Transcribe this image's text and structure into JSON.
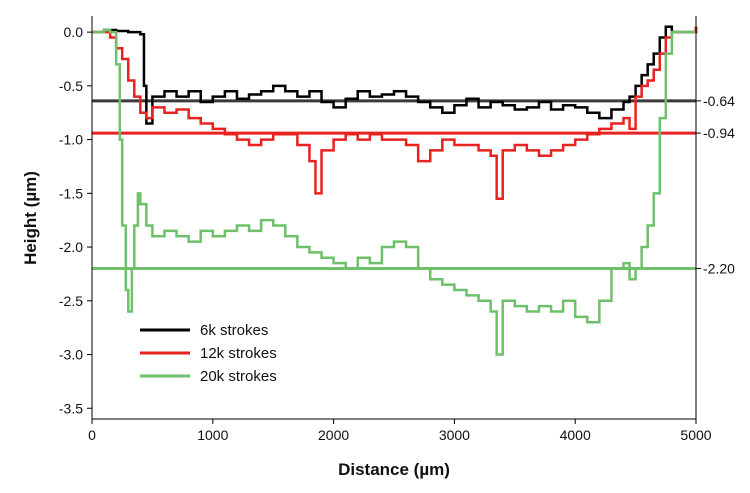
{
  "chart_data": {
    "type": "line",
    "xlabel": "Distance (µm)",
    "ylabel": "Height (µm)",
    "xlim": [
      0,
      5000
    ],
    "ylim": [
      -3.6,
      0.15
    ],
    "x_ticks": [
      0,
      1000,
      2000,
      3000,
      4000,
      5000
    ],
    "x_tick_labels": [
      "0",
      "1000",
      "2000",
      "3000",
      "4000",
      "5000"
    ],
    "y_ticks": [
      0,
      -0.5,
      -1,
      -1.5,
      -2,
      -2.5,
      -3,
      -3.5
    ],
    "y_tick_labels": [
      "0.0",
      "-0.5",
      "-1.0",
      "-1.5",
      "-2.0",
      "-2.5",
      "-3.0",
      "-3.5"
    ],
    "grid": false,
    "legend_position": "bottom-left",
    "series": [
      {
        "name": "6k strokes",
        "color": "#000000",
        "x": [
          0,
          100,
          200,
          300,
          350,
          400,
          430,
          450,
          500,
          600,
          700,
          800,
          900,
          1000,
          1100,
          1200,
          1300,
          1400,
          1500,
          1600,
          1700,
          1800,
          1900,
          2000,
          2100,
          2200,
          2300,
          2400,
          2500,
          2600,
          2700,
          2800,
          2900,
          3000,
          3100,
          3200,
          3300,
          3400,
          3500,
          3600,
          3700,
          3800,
          3900,
          4000,
          4100,
          4200,
          4300,
          4400,
          4450,
          4500,
          4550,
          4600,
          4650,
          4700,
          4750,
          4800,
          4850,
          4900,
          5000
        ],
        "y": [
          0.0,
          0.02,
          0.01,
          0.0,
          0.0,
          -0.02,
          -0.5,
          -0.85,
          -0.6,
          -0.55,
          -0.6,
          -0.55,
          -0.65,
          -0.6,
          -0.55,
          -0.62,
          -0.58,
          -0.55,
          -0.5,
          -0.55,
          -0.6,
          -0.55,
          -0.65,
          -0.7,
          -0.62,
          -0.55,
          -0.6,
          -0.58,
          -0.55,
          -0.6,
          -0.65,
          -0.7,
          -0.75,
          -0.68,
          -0.62,
          -0.7,
          -0.65,
          -0.68,
          -0.72,
          -0.7,
          -0.65,
          -0.72,
          -0.68,
          -0.7,
          -0.75,
          -0.8,
          -0.72,
          -0.65,
          -0.6,
          -0.5,
          -0.4,
          -0.3,
          -0.2,
          -0.05,
          0.05,
          0.0,
          0.0,
          0.0,
          0.05
        ]
      },
      {
        "name": "12k strokes",
        "color": "#e8221f",
        "x": [
          0,
          100,
          150,
          200,
          250,
          300,
          350,
          400,
          450,
          500,
          600,
          700,
          800,
          900,
          1000,
          1100,
          1200,
          1300,
          1400,
          1500,
          1600,
          1700,
          1800,
          1850,
          1900,
          2000,
          2100,
          2200,
          2300,
          2400,
          2500,
          2600,
          2700,
          2800,
          2900,
          3000,
          3100,
          3200,
          3300,
          3350,
          3400,
          3500,
          3600,
          3700,
          3800,
          3900,
          4000,
          4100,
          4200,
          4300,
          4400,
          4450,
          4500,
          4550,
          4600,
          4650,
          4700,
          4750,
          4800,
          4900,
          5000
        ],
        "y": [
          0.0,
          0.0,
          -0.05,
          -0.15,
          -0.25,
          -0.45,
          -0.6,
          -0.75,
          -0.8,
          -0.7,
          -0.75,
          -0.72,
          -0.8,
          -0.85,
          -0.9,
          -0.95,
          -1.0,
          -1.05,
          -1.0,
          -0.95,
          -0.95,
          -1.05,
          -1.2,
          -1.5,
          -1.1,
          -1.0,
          -0.95,
          -1.0,
          -0.95,
          -1.0,
          -1.0,
          -1.05,
          -1.2,
          -1.1,
          -1.0,
          -1.05,
          -1.05,
          -1.1,
          -1.15,
          -1.55,
          -1.1,
          -1.05,
          -1.1,
          -1.15,
          -1.1,
          -1.05,
          -1.0,
          -0.95,
          -0.9,
          -0.85,
          -0.8,
          -0.9,
          -0.6,
          -0.5,
          -0.45,
          -0.35,
          -0.2,
          -0.05,
          0.0,
          0.0,
          0.05
        ]
      },
      {
        "name": "20k strokes",
        "color": "#6fc06a",
        "x": [
          0,
          100,
          150,
          200,
          230,
          250,
          280,
          300,
          330,
          350,
          380,
          400,
          450,
          500,
          600,
          700,
          800,
          900,
          1000,
          1100,
          1200,
          1300,
          1400,
          1500,
          1600,
          1700,
          1800,
          1900,
          2000,
          2100,
          2200,
          2300,
          2400,
          2500,
          2600,
          2700,
          2800,
          2900,
          3000,
          3100,
          3200,
          3300,
          3350,
          3400,
          3500,
          3600,
          3700,
          3800,
          3900,
          4000,
          4100,
          4200,
          4300,
          4400,
          4450,
          4500,
          4550,
          4600,
          4650,
          4700,
          4750,
          4800,
          5000
        ],
        "y": [
          0.0,
          0.02,
          0.0,
          -0.3,
          -1.0,
          -1.8,
          -2.4,
          -2.6,
          -2.2,
          -1.8,
          -1.5,
          -1.6,
          -1.8,
          -1.9,
          -1.85,
          -1.9,
          -1.95,
          -1.85,
          -1.9,
          -1.85,
          -1.8,
          -1.85,
          -1.75,
          -1.8,
          -1.9,
          -2.0,
          -2.05,
          -2.1,
          -2.15,
          -2.2,
          -2.1,
          -2.15,
          -2.0,
          -1.95,
          -2.0,
          -2.2,
          -2.3,
          -2.35,
          -2.4,
          -2.45,
          -2.5,
          -2.6,
          -3.0,
          -2.5,
          -2.55,
          -2.6,
          -2.55,
          -2.6,
          -2.5,
          -2.65,
          -2.7,
          -2.5,
          -2.2,
          -2.15,
          -2.3,
          -2.2,
          -2.0,
          -1.8,
          -1.5,
          -0.8,
          -0.2,
          0.0,
          0.0
        ]
      }
    ],
    "reference_lines": [
      {
        "series": "6k strokes",
        "value": -0.64,
        "label": "-0.64",
        "color": "#3a3a3a"
      },
      {
        "series": "12k strokes",
        "value": -0.94,
        "label": "-0.94",
        "color": "#e8221f"
      },
      {
        "series": "20k strokes",
        "value": -2.2,
        "label": "-2.20",
        "color": "#6fc06a"
      }
    ]
  }
}
